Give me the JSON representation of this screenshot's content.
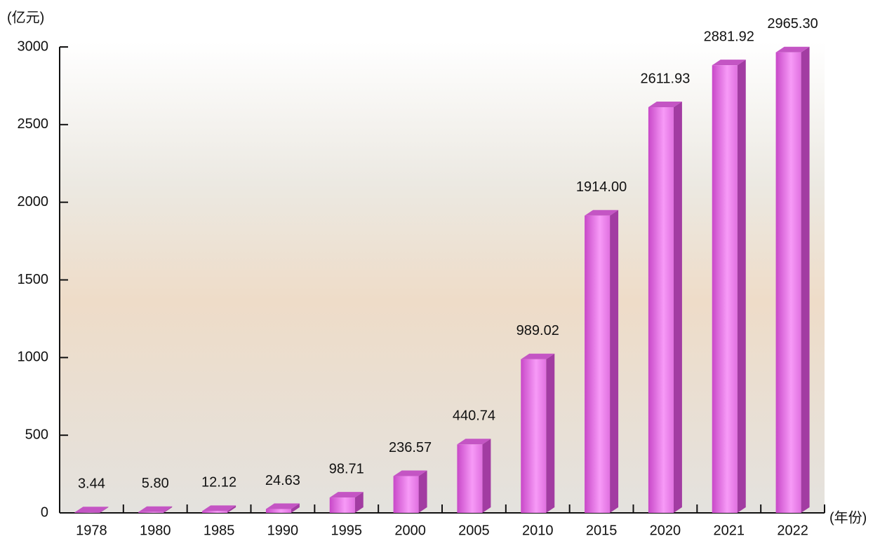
{
  "chart_data": {
    "type": "bar3d",
    "y_axis_label": "(亿元)",
    "x_axis_label": "(年份)",
    "categories": [
      "1978",
      "1980",
      "1985",
      "1990",
      "1995",
      "2000",
      "2005",
      "2010",
      "2015",
      "2020",
      "2021",
      "2022"
    ],
    "values": [
      3.44,
      5.8,
      12.12,
      24.63,
      98.71,
      236.57,
      440.74,
      989.02,
      1914.0,
      2611.93,
      2881.92,
      2965.3
    ],
    "value_labels": [
      "3.44",
      "5.80",
      "12.12",
      "24.63",
      "98.71",
      "236.57",
      "440.74",
      "989.02",
      "1914.00",
      "2611.93",
      "2881.92",
      "2965.30"
    ],
    "color": "#e46ee4",
    "ylim": [
      0,
      3000
    ],
    "yticks": [
      0,
      500,
      1000,
      1500,
      2000,
      2500,
      3000
    ]
  }
}
